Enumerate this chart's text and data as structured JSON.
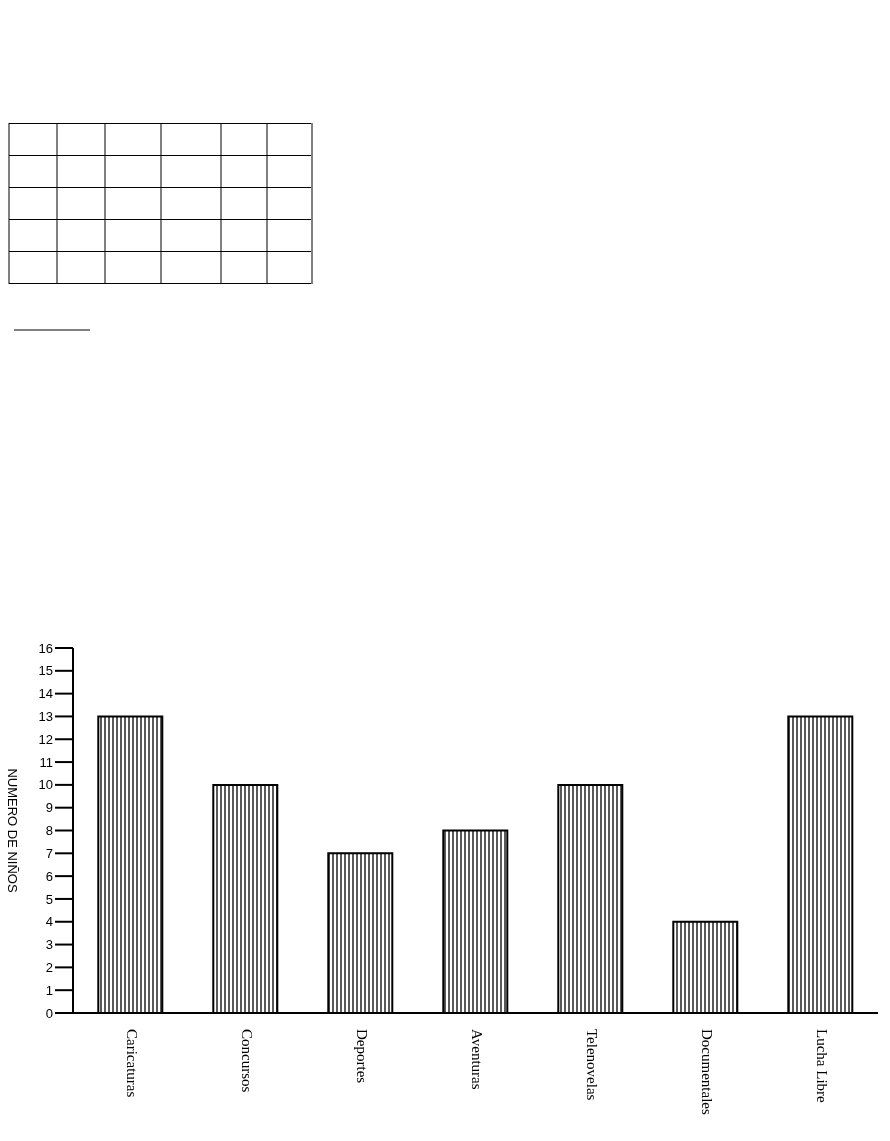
{
  "chart_data": {
    "type": "bar",
    "ylabel": "NUMERO DE NIÑOS",
    "categories": [
      "Caricaturas",
      "Concursos",
      "Deportes",
      "Aventuras",
      "Telenovelas",
      "Documentales",
      "Lucha Libre"
    ],
    "values": [
      13,
      10,
      7,
      8,
      10,
      4,
      13
    ],
    "color": "#000000",
    "ylim": [
      0,
      16
    ],
    "yticks": [
      0,
      1,
      2,
      3,
      4,
      5,
      6,
      7,
      8,
      9,
      10,
      11,
      12,
      13,
      14,
      15,
      16
    ],
    "grid": false,
    "legend": false
  }
}
